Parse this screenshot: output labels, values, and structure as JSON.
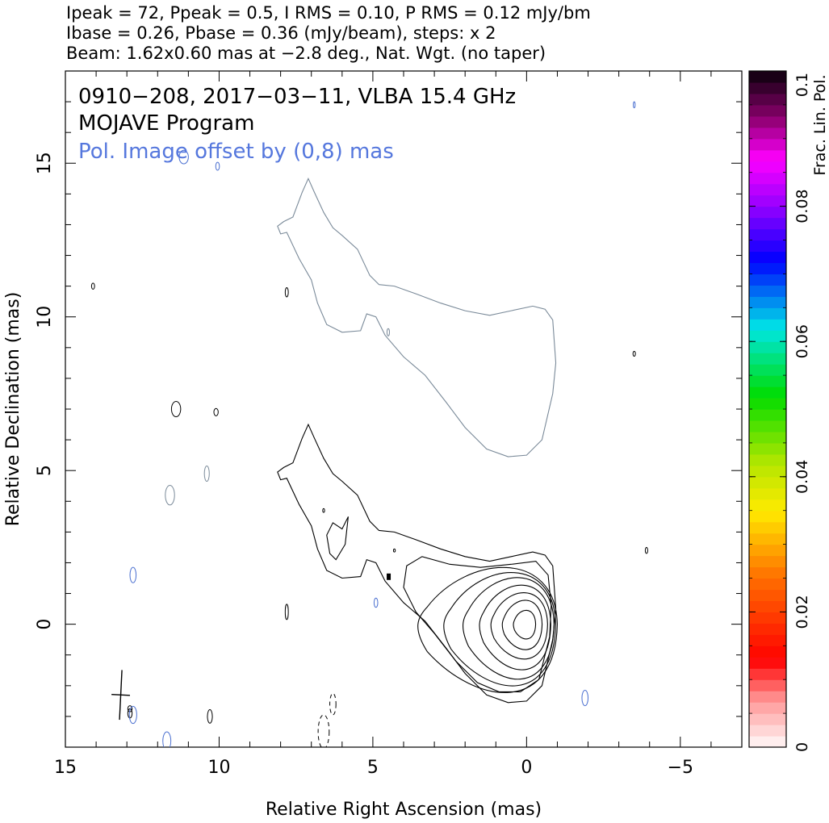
{
  "header": {
    "line1": "Ipeak = 72, Ppeak = 0.5, I RMS = 0.10, P RMS = 0.12 mJy/bm",
    "line2": "Ibase = 0.26, Pbase = 0.36 (mJy/beam), steps: x 2",
    "line3": "Beam: 1.62x0.60 mas at −2.8 deg., Nat. Wgt. (no taper)"
  },
  "chart_data": {
    "type": "contour",
    "title_lines": [
      "0910−208, 2017−03−11, VLBA 15.4 GHz",
      "MOJAVE Program"
    ],
    "subtitle": "Pol. Image offset by (0,8) mas",
    "xlabel": "Relative Right Ascension (mas)",
    "ylabel": "Relative Declination (mas)",
    "xlim": [
      15,
      -7
    ],
    "ylim": [
      -4,
      18
    ],
    "xticks": [
      15,
      10,
      5,
      0,
      -5
    ],
    "xtick_labels": [
      "15",
      "10",
      "5",
      "0",
      "−5"
    ],
    "yticks": [
      0,
      5,
      10,
      15
    ],
    "ytick_labels": [
      "0",
      "5",
      "10",
      "15"
    ],
    "peak_position": [
      0,
      0
    ],
    "peak_intensity_mJy": 72,
    "base_contour_mJy": 0.26,
    "contour_step_factor": 2,
    "contour_levels_mJy": [
      0.26,
      0.52,
      1.04,
      2.08,
      4.16,
      8.32,
      16.64,
      33.28,
      66.56
    ],
    "pol_offset_mas": [
      0,
      8
    ],
    "beam": {
      "major_mas": 1.62,
      "minor_mas": 0.6,
      "pa_deg": -2.8,
      "center_mas": [
        13.2,
        -2.3
      ]
    },
    "colorbar": {
      "label": "Frac. Lin. Pol.",
      "range": [
        0,
        0.1
      ],
      "ticks": [
        0,
        0.02,
        0.04,
        0.06,
        0.08,
        0.1
      ],
      "tick_labels": [
        "0",
        "0.02",
        "0.04",
        "0.06",
        "0.08",
        "0.1"
      ]
    }
  },
  "colors": {
    "stokes_i_contour": "#000000",
    "pol_contour": "#7a8a99",
    "pol_noise_contour": "#4a6fd0",
    "subtitle": "#5577dd"
  }
}
